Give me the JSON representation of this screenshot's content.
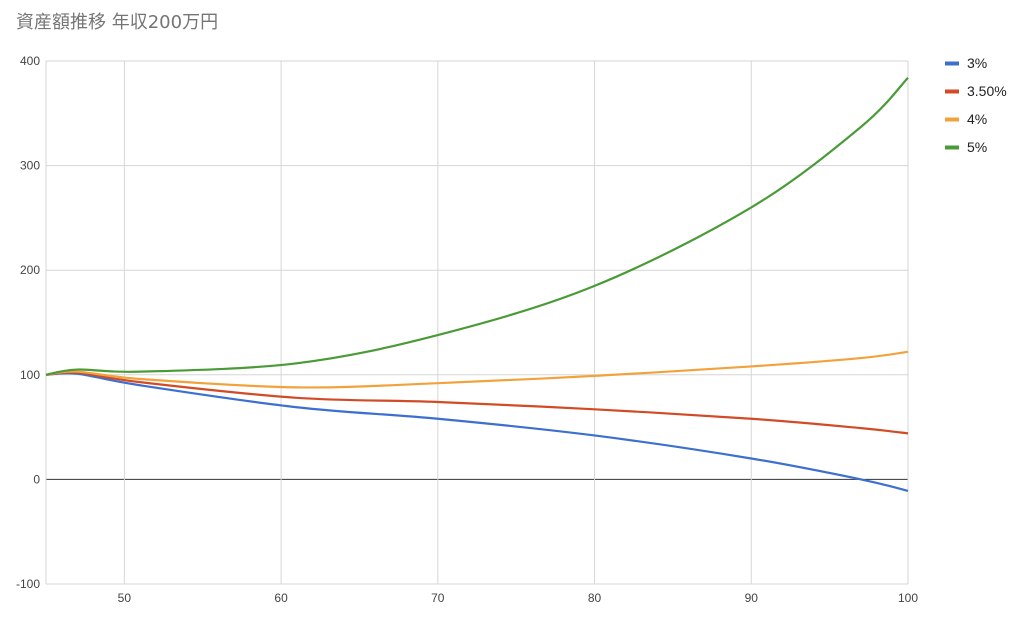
{
  "chart_data": {
    "type": "line",
    "title": "資産額推移 年収200万円",
    "xlabel": "",
    "ylabel": "",
    "xlim": [
      45,
      100
    ],
    "ylim": [
      -100,
      400
    ],
    "xticks": [
      50,
      60,
      70,
      80,
      90,
      100
    ],
    "yticks": [
      -100,
      0,
      100,
      200,
      300,
      400
    ],
    "grid": true,
    "legend": "right",
    "x": [
      45,
      47,
      51,
      61,
      70,
      80,
      90,
      97,
      100
    ],
    "series": [
      {
        "name": "3%",
        "color": "#3c6fcf",
        "values": [
          100,
          101,
          90,
          69,
          58,
          42,
          20,
          0,
          -11
        ]
      },
      {
        "name": "3.50%",
        "color": "#d14b26",
        "values": [
          100,
          102,
          93,
          78,
          74,
          67,
          58,
          49,
          44
        ]
      },
      {
        "name": "4%",
        "color": "#f2a23c",
        "values": [
          100,
          103,
          96,
          88,
          92,
          99,
          108,
          116,
          122
        ]
      },
      {
        "name": "5%",
        "color": "#4a9b37",
        "values": [
          100,
          105,
          103,
          111,
          138,
          185,
          260,
          337,
          384
        ]
      }
    ]
  }
}
